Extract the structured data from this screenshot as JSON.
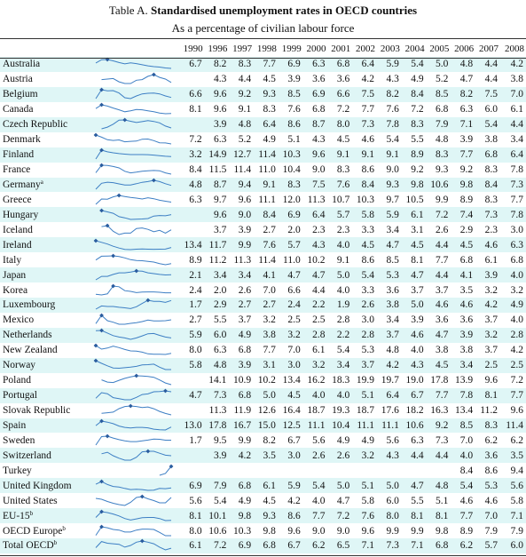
{
  "title_prefix": "Table A.",
  "title_bold": "Standardised unemployment rates in OECD countries",
  "subtitle": "As a percentage of civilian labour force",
  "years": [
    "1990",
    "1996",
    "1997",
    "1998",
    "1999",
    "2000",
    "2001",
    "2002",
    "2003",
    "2004",
    "2005",
    "2006",
    "2007",
    "2008"
  ],
  "countries": [
    {
      "name": "Australia",
      "note": "",
      "values": [
        "6.7",
        "8.2",
        "8.3",
        "7.7",
        "6.9",
        "6.3",
        "6.8",
        "6.4",
        "5.9",
        "5.4",
        "5.0",
        "4.8",
        "4.4",
        "4.2"
      ]
    },
    {
      "name": "Austria",
      "note": "",
      "values": [
        "",
        "4.3",
        "4.4",
        "4.5",
        "3.9",
        "3.6",
        "3.6",
        "4.2",
        "4.3",
        "4.9",
        "5.2",
        "4.7",
        "4.4",
        "3.8"
      ]
    },
    {
      "name": "Belgium",
      "note": "",
      "values": [
        "6.6",
        "9.6",
        "9.2",
        "9.3",
        "8.5",
        "6.9",
        "6.6",
        "7.5",
        "8.2",
        "8.4",
        "8.5",
        "8.2",
        "7.5",
        "7.0"
      ]
    },
    {
      "name": "Canada",
      "note": "",
      "values": [
        "8.1",
        "9.6",
        "9.1",
        "8.3",
        "7.6",
        "6.8",
        "7.2",
        "7.7",
        "7.6",
        "7.2",
        "6.8",
        "6.3",
        "6.0",
        "6.1"
      ]
    },
    {
      "name": "Czech Republic",
      "note": "",
      "values": [
        "",
        "3.9",
        "4.8",
        "6.4",
        "8.6",
        "8.7",
        "8.0",
        "7.3",
        "7.8",
        "8.3",
        "7.9",
        "7.1",
        "5.4",
        "4.4"
      ]
    },
    {
      "name": "Denmark",
      "note": "",
      "values": [
        "7.2",
        "6.3",
        "5.2",
        "4.9",
        "5.1",
        "4.3",
        "4.5",
        "4.6",
        "5.4",
        "5.5",
        "4.8",
        "3.9",
        "3.8",
        "3.4"
      ]
    },
    {
      "name": "Finland",
      "note": "",
      "values": [
        "3.2",
        "14.9",
        "12.7",
        "11.4",
        "10.3",
        "9.6",
        "9.1",
        "9.1",
        "9.1",
        "8.9",
        "8.3",
        "7.7",
        "6.8",
        "6.4"
      ]
    },
    {
      "name": "France",
      "note": "",
      "values": [
        "8.4",
        "11.5",
        "11.4",
        "11.0",
        "10.4",
        "9.0",
        "8.3",
        "8.6",
        "9.0",
        "9.2",
        "9.3",
        "9.2",
        "8.3",
        "7.8"
      ]
    },
    {
      "name": "Germany",
      "note": "a",
      "values": [
        "4.8",
        "8.7",
        "9.4",
        "9.1",
        "8.3",
        "7.5",
        "7.6",
        "8.4",
        "9.3",
        "9.8",
        "10.6",
        "9.8",
        "8.4",
        "7.3"
      ]
    },
    {
      "name": "Greece",
      "note": "",
      "values": [
        "6.3",
        "9.7",
        "9.6",
        "11.1",
        "12.0",
        "11.3",
        "10.7",
        "10.3",
        "9.7",
        "10.5",
        "9.9",
        "8.9",
        "8.3",
        "7.7"
      ]
    },
    {
      "name": "Hungary",
      "note": "",
      "values": [
        "",
        "9.6",
        "9.0",
        "8.4",
        "6.9",
        "6.4",
        "5.7",
        "5.8",
        "5.9",
        "6.1",
        "7.2",
        "7.4",
        "7.3",
        "7.8"
      ]
    },
    {
      "name": "Iceland",
      "note": "",
      "values": [
        "",
        "3.7",
        "3.9",
        "2.7",
        "2.0",
        "2.3",
        "2.3",
        "3.3",
        "3.4",
        "3.1",
        "2.6",
        "2.9",
        "2.3",
        "3.0"
      ]
    },
    {
      "name": "Ireland",
      "note": "",
      "values": [
        "13.4",
        "11.7",
        "9.9",
        "7.6",
        "5.7",
        "4.3",
        "4.0",
        "4.5",
        "4.7",
        "4.5",
        "4.4",
        "4.5",
        "4.6",
        "6.3"
      ]
    },
    {
      "name": "Italy",
      "note": "",
      "values": [
        "8.9",
        "11.2",
        "11.3",
        "11.4",
        "11.0",
        "10.2",
        "9.1",
        "8.6",
        "8.5",
        "8.1",
        "7.7",
        "6.8",
        "6.1",
        "6.8"
      ]
    },
    {
      "name": "Japan",
      "note": "",
      "values": [
        "2.1",
        "3.4",
        "3.4",
        "4.1",
        "4.7",
        "4.7",
        "5.0",
        "5.4",
        "5.3",
        "4.7",
        "4.4",
        "4.1",
        "3.9",
        "4.0"
      ]
    },
    {
      "name": "Korea",
      "note": "",
      "values": [
        "2.4",
        "2.0",
        "2.6",
        "7.0",
        "6.6",
        "4.4",
        "4.0",
        "3.3",
        "3.6",
        "3.7",
        "3.7",
        "3.5",
        "3.2",
        "3.2"
      ]
    },
    {
      "name": "Luxembourg",
      "note": "",
      "values": [
        "1.7",
        "2.9",
        "2.7",
        "2.7",
        "2.4",
        "2.2",
        "1.9",
        "2.6",
        "3.8",
        "5.0",
        "4.6",
        "4.6",
        "4.2",
        "4.9"
      ]
    },
    {
      "name": "Mexico",
      "note": "",
      "values": [
        "2.7",
        "5.5",
        "3.7",
        "3.2",
        "2.5",
        "2.5",
        "2.8",
        "3.0",
        "3.4",
        "3.9",
        "3.6",
        "3.6",
        "3.7",
        "4.0"
      ]
    },
    {
      "name": "Netherlands",
      "note": "",
      "values": [
        "5.9",
        "6.0",
        "4.9",
        "3.8",
        "3.2",
        "2.8",
        "2.2",
        "2.8",
        "3.7",
        "4.6",
        "4.7",
        "3.9",
        "3.2",
        "2.8"
      ]
    },
    {
      "name": "New Zealand",
      "note": "",
      "values": [
        "8.0",
        "6.3",
        "6.8",
        "7.7",
        "7.0",
        "6.1",
        "5.4",
        "5.3",
        "4.8",
        "4.0",
        "3.8",
        "3.8",
        "3.7",
        "4.2"
      ]
    },
    {
      "name": "Norway",
      "note": "",
      "values": [
        "5.8",
        "4.8",
        "3.9",
        "3.1",
        "3.0",
        "3.2",
        "3.4",
        "3.7",
        "4.2",
        "4.3",
        "4.5",
        "3.4",
        "2.5",
        "2.5"
      ]
    },
    {
      "name": "Poland",
      "note": "",
      "values": [
        "",
        "14.1",
        "10.9",
        "10.2",
        "13.4",
        "16.2",
        "18.3",
        "19.9",
        "19.7",
        "19.0",
        "17.8",
        "13.9",
        "9.6",
        "7.2"
      ]
    },
    {
      "name": "Portugal",
      "note": "",
      "values": [
        "4.7",
        "7.3",
        "6.8",
        "5.0",
        "4.5",
        "4.0",
        "4.0",
        "5.1",
        "6.4",
        "6.7",
        "7.7",
        "7.8",
        "8.1",
        "7.7"
      ]
    },
    {
      "name": "Slovak Republic",
      "note": "",
      "values": [
        "",
        "11.3",
        "11.9",
        "12.6",
        "16.4",
        "18.7",
        "19.3",
        "18.7",
        "17.6",
        "18.2",
        "16.3",
        "13.4",
        "11.2",
        "9.6"
      ]
    },
    {
      "name": "Spain",
      "note": "",
      "values": [
        "13.0",
        "17.8",
        "16.7",
        "15.0",
        "12.5",
        "11.1",
        "10.4",
        "11.1",
        "11.1",
        "10.6",
        "9.2",
        "8.5",
        "8.3",
        "11.4"
      ]
    },
    {
      "name": "Sweden",
      "note": "",
      "values": [
        "1.7",
        "9.5",
        "9.9",
        "8.2",
        "6.7",
        "5.6",
        "4.9",
        "4.9",
        "5.6",
        "6.3",
        "7.3",
        "7.0",
        "6.2",
        "6.2"
      ]
    },
    {
      "name": "Switzerland",
      "note": "",
      "values": [
        "",
        "3.9",
        "4.2",
        "3.5",
        "3.0",
        "2.6",
        "2.6",
        "3.2",
        "4.3",
        "4.4",
        "4.4",
        "4.0",
        "3.6",
        "3.5"
      ]
    },
    {
      "name": "Turkey",
      "note": "",
      "values": [
        "",
        "",
        "",
        "",
        "",
        "",
        "",
        "",
        "",
        "",
        "",
        "8.4",
        "8.6",
        "9.4"
      ]
    },
    {
      "name": "United Kingdom",
      "note": "",
      "values": [
        "6.9",
        "7.9",
        "6.8",
        "6.1",
        "5.9",
        "5.4",
        "5.0",
        "5.1",
        "5.0",
        "4.7",
        "4.8",
        "5.4",
        "5.3",
        "5.6"
      ]
    },
    {
      "name": "United States",
      "note": "",
      "values": [
        "5.6",
        "5.4",
        "4.9",
        "4.5",
        "4.2",
        "4.0",
        "4.7",
        "5.8",
        "6.0",
        "5.5",
        "5.1",
        "4.6",
        "4.6",
        "5.8"
      ]
    },
    {
      "name": "EU-15",
      "note": "b",
      "values": [
        "8.1",
        "10.1",
        "9.8",
        "9.3",
        "8.6",
        "7.7",
        "7.2",
        "7.6",
        "8.0",
        "8.1",
        "8.1",
        "7.7",
        "7.0",
        "7.1"
      ]
    },
    {
      "name": "OECD Europe",
      "note": "b",
      "values": [
        "8.0",
        "10.6",
        "10.3",
        "9.8",
        "9.6",
        "9.0",
        "9.0",
        "9.6",
        "9.9",
        "9.9",
        "9.8",
        "8.9",
        "7.9",
        "7.9"
      ]
    },
    {
      "name": "Total OECD",
      "note": "b",
      "values": [
        "6.1",
        "7.2",
        "6.9",
        "6.8",
        "6.7",
        "6.2",
        "6.5",
        "7.1",
        "7.3",
        "7.1",
        "6.8",
        "6.2",
        "5.7",
        "6.0"
      ]
    }
  ],
  "colors": {
    "row_band": "#dff6f6",
    "spark_line": "#3d7fc4",
    "spark_marker": "#2a5d9f"
  }
}
